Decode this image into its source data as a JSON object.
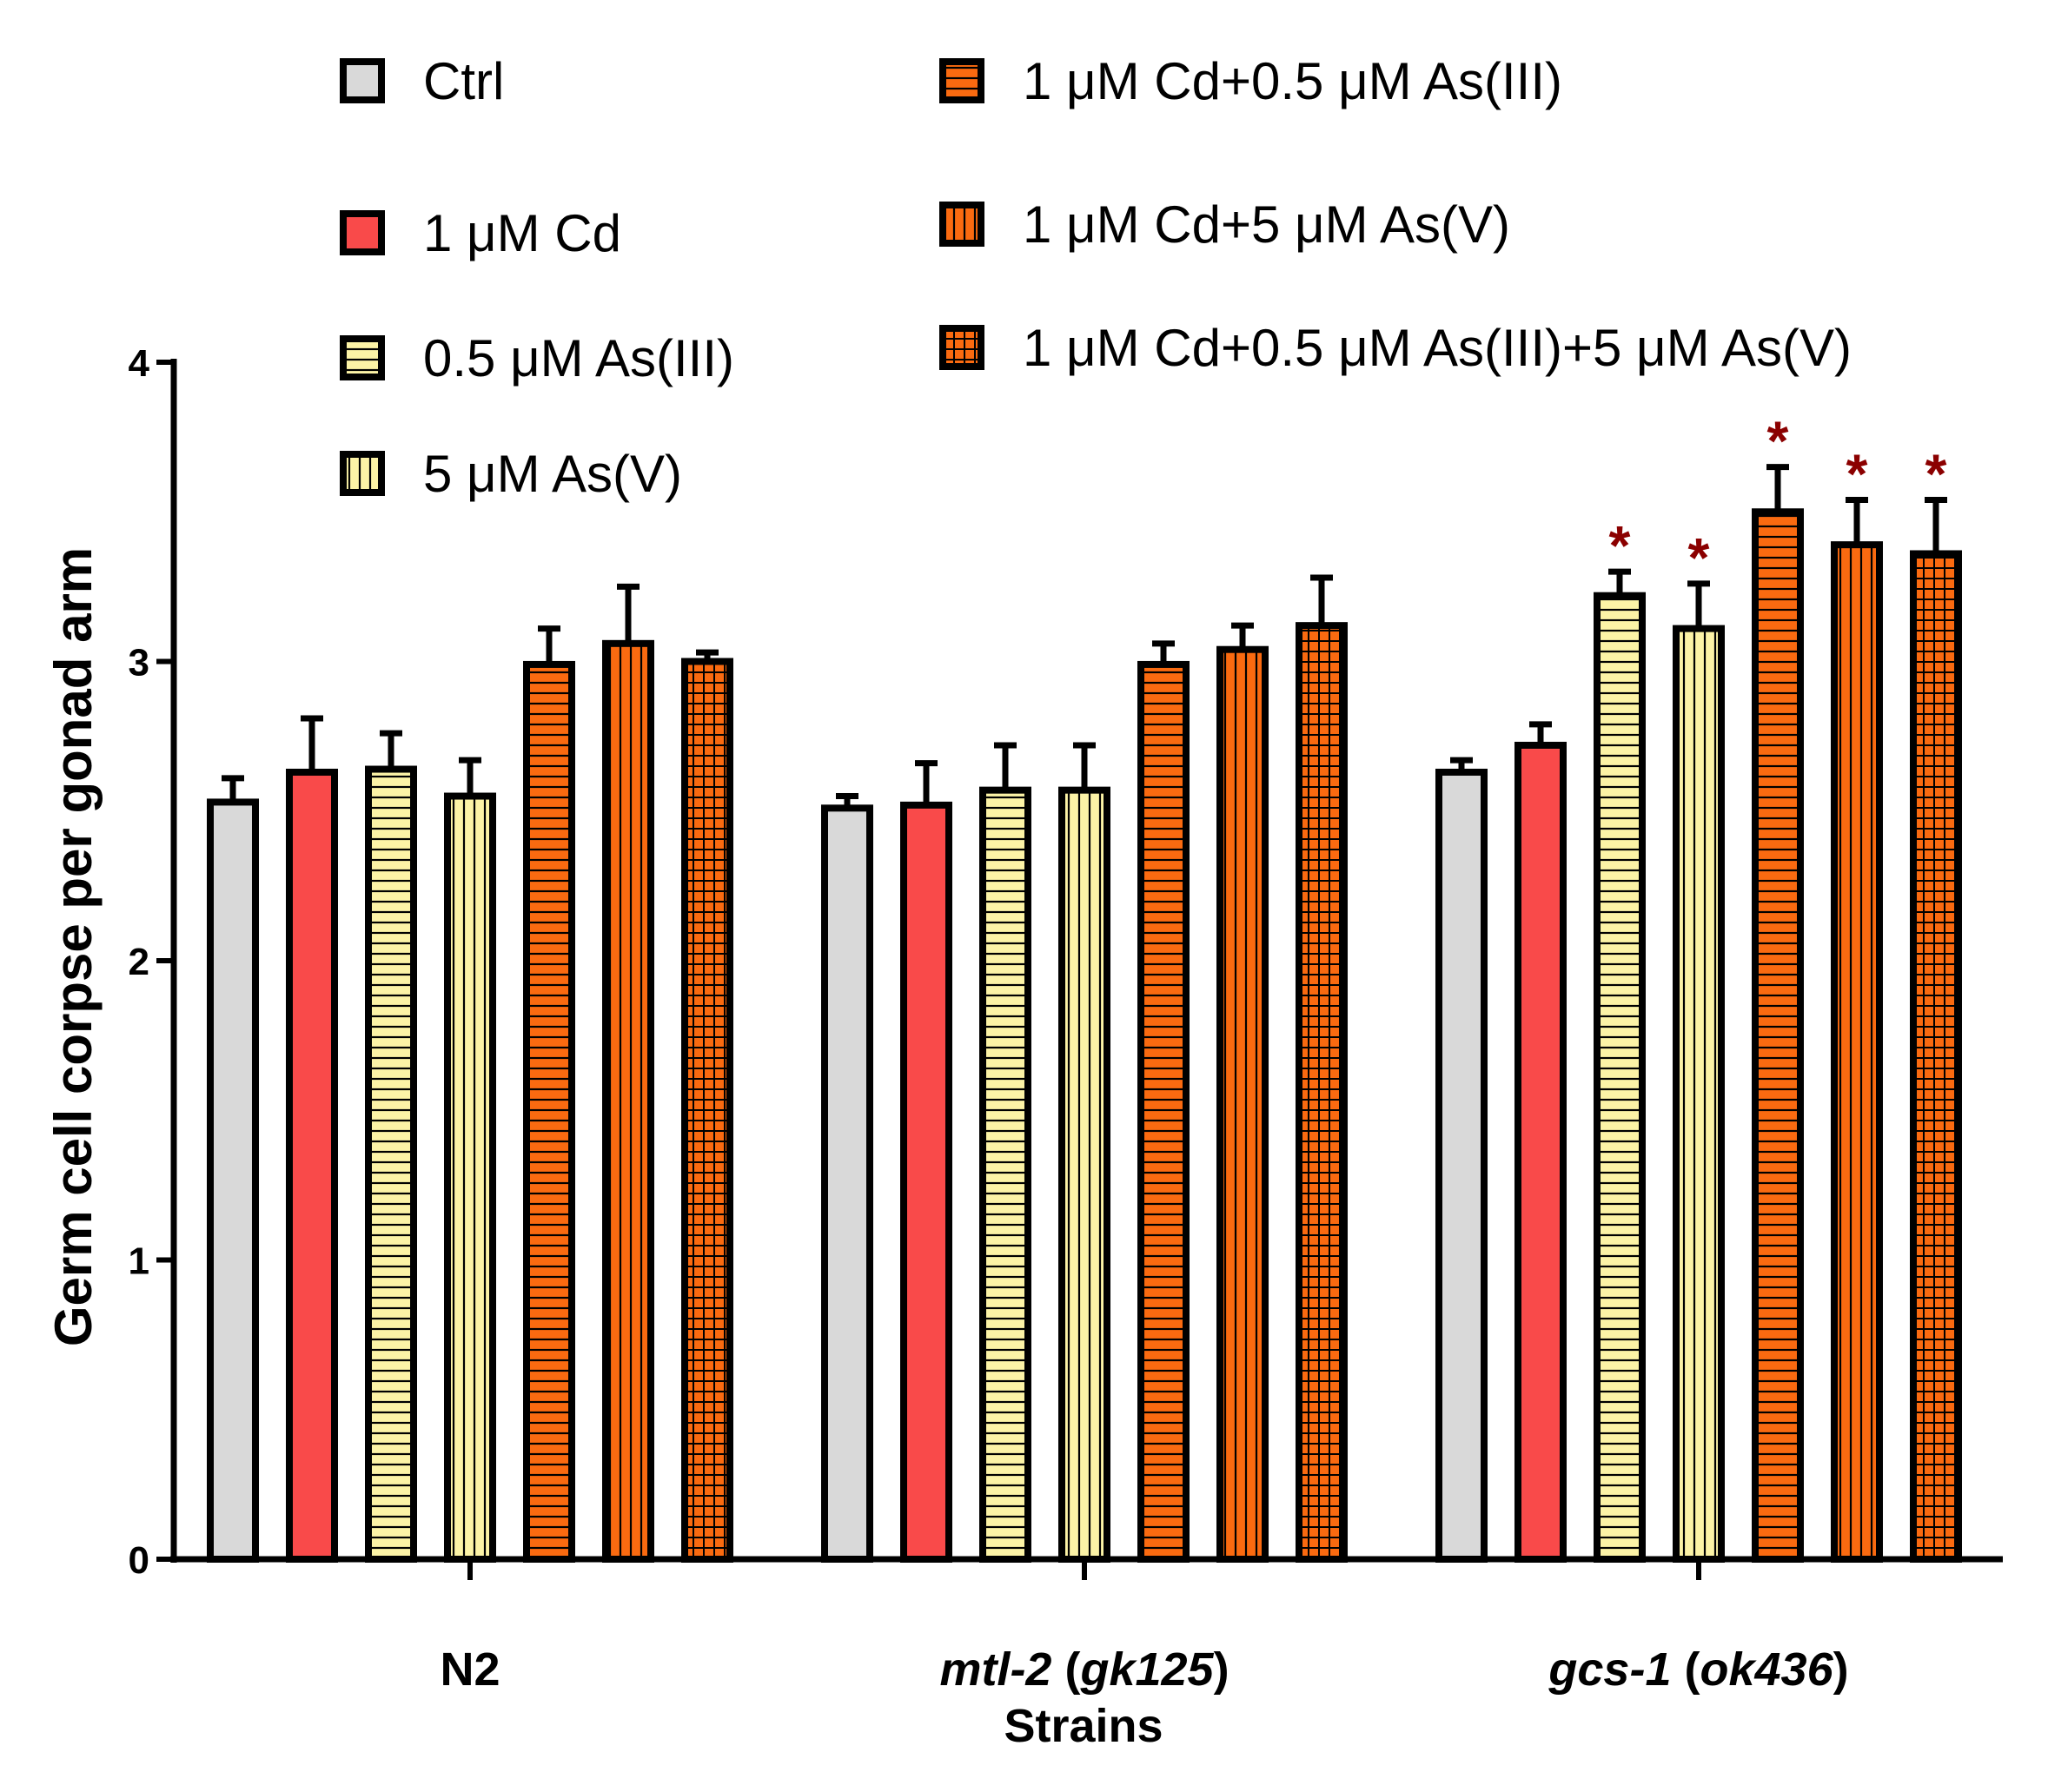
{
  "chart_data": {
    "type": "bar",
    "ylabel": "Germ cell corpse per gonad arm",
    "xlabel": "Strains",
    "ylim": [
      0,
      4
    ],
    "yticks": [
      "0",
      "1",
      "2",
      "3",
      "4"
    ],
    "groups": [
      {
        "label": "N2",
        "parts": [
          {
            "text": "N2",
            "italic": false
          }
        ]
      },
      {
        "label": "mtl-2 (gk125)",
        "parts": [
          {
            "text": "mtl-2",
            "italic": true
          },
          {
            "text": " (",
            "italic": false
          },
          {
            "text": "gk125",
            "italic": true
          },
          {
            "text": ")",
            "italic": false
          }
        ]
      },
      {
        "label": "gcs-1 (ok436)",
        "parts": [
          {
            "text": "gcs-1",
            "italic": true
          },
          {
            "text": " (",
            "italic": false
          },
          {
            "text": "ok436",
            "italic": true
          },
          {
            "text": ")",
            "italic": false
          }
        ]
      }
    ],
    "series": [
      {
        "name": "Ctrl",
        "color": "#d9d9d9",
        "pattern": "none",
        "values": [
          2.53,
          2.51,
          2.63
        ],
        "errors": [
          0.08,
          0.04,
          0.04
        ],
        "significant": [
          false,
          false,
          false
        ]
      },
      {
        "name": "1 μM Cd",
        "color": "#f94a4a",
        "pattern": "none",
        "values": [
          2.63,
          2.52,
          2.72
        ],
        "errors": [
          0.18,
          0.14,
          0.07
        ],
        "significant": [
          false,
          false,
          false
        ]
      },
      {
        "name": "0.5 μM As(III)",
        "color": "#fcf3a6",
        "pattern": "hlines",
        "values": [
          2.64,
          2.57,
          3.22
        ],
        "errors": [
          0.12,
          0.15,
          0.08
        ],
        "significant": [
          false,
          false,
          true
        ]
      },
      {
        "name": "5 μM As(V)",
        "color": "#fcf3a6",
        "pattern": "vlines",
        "values": [
          2.55,
          2.57,
          3.11
        ],
        "errors": [
          0.12,
          0.15,
          0.15
        ],
        "significant": [
          false,
          false,
          true
        ]
      },
      {
        "name": "1 μM Cd+0.5 μM As(III)",
        "color": "#fa6a10",
        "pattern": "hlines",
        "values": [
          2.99,
          2.99,
          3.5
        ],
        "errors": [
          0.12,
          0.07,
          0.15
        ],
        "significant": [
          false,
          false,
          true
        ]
      },
      {
        "name": "1 μM Cd+5 μM As(V)",
        "color": "#fa6a10",
        "pattern": "vlines",
        "values": [
          3.06,
          3.04,
          3.39
        ],
        "errors": [
          0.19,
          0.08,
          0.15
        ],
        "significant": [
          false,
          false,
          true
        ]
      },
      {
        "name": "1 μM Cd+0.5 μM As(III)+5 μM As(V)",
        "color": "#fa6a10",
        "pattern": "grid",
        "values": [
          3.0,
          3.12,
          3.36
        ],
        "errors": [
          0.03,
          0.16,
          0.18
        ],
        "significant": [
          false,
          false,
          true
        ]
      }
    ],
    "significance_marker": "*",
    "significance_color": "#8b0000"
  }
}
